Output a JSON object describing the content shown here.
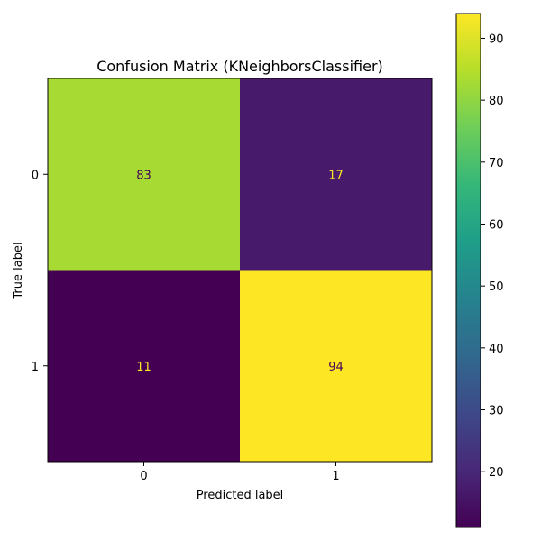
{
  "chart_data": {
    "type": "heatmap",
    "title": "Confusion Matrix (KNeighborsClassifier)",
    "xlabel": "Predicted label",
    "ylabel": "True label",
    "x_categories": [
      "0",
      "1"
    ],
    "y_categories": [
      "0",
      "1"
    ],
    "values": [
      [
        83,
        17
      ],
      [
        11,
        94
      ]
    ],
    "colormap": "viridis",
    "colorbar": {
      "vmin": 11,
      "vmax": 94,
      "ticks": [
        20,
        30,
        40,
        50,
        60,
        70,
        80,
        90
      ]
    },
    "grid": false
  }
}
